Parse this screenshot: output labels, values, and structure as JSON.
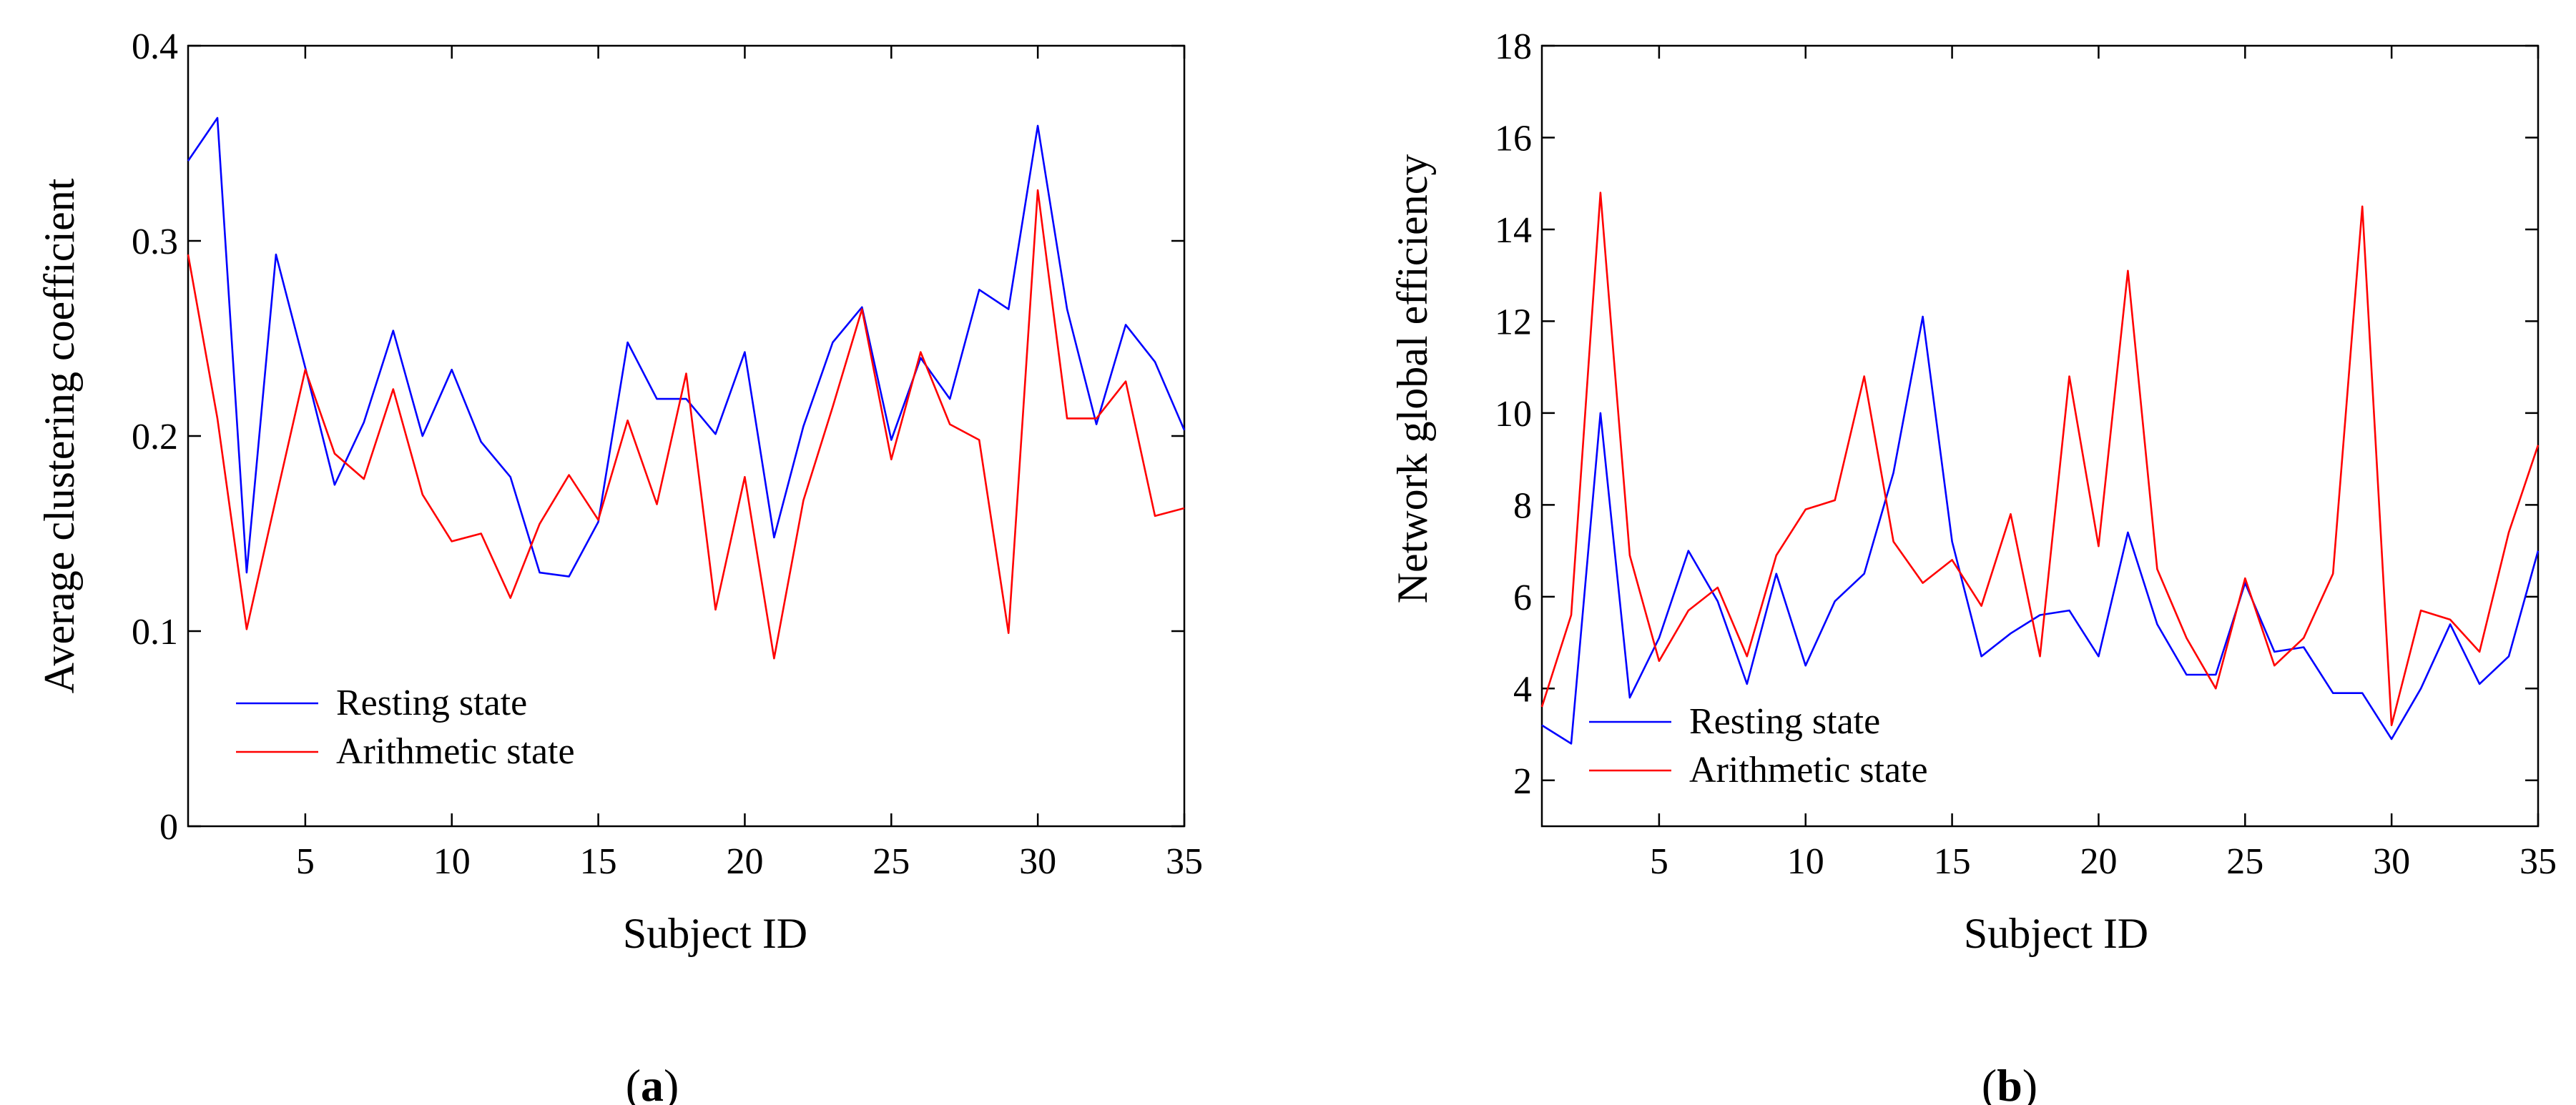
{
  "colors": {
    "resting": "#0000ff",
    "arithmetic": "#ff0000",
    "axis": "#000000"
  },
  "chart_data": [
    {
      "type": "line",
      "caption_letter": "a",
      "xlabel": "Subject ID",
      "ylabel": "Average clustering coefficient",
      "xlim": [
        1,
        35
      ],
      "ylim": [
        0,
        0.4
      ],
      "x_ticks": [
        5,
        10,
        15,
        20,
        25,
        30,
        35
      ],
      "y_ticks": [
        0,
        0.1,
        0.2,
        0.3,
        0.4
      ],
      "y_tick_labels": [
        "0",
        "0.1",
        "0.2",
        "0.3",
        "0.4"
      ],
      "x": [
        1,
        2,
        3,
        4,
        5,
        6,
        7,
        8,
        9,
        10,
        11,
        12,
        13,
        14,
        15,
        16,
        17,
        18,
        19,
        20,
        21,
        22,
        23,
        24,
        25,
        26,
        27,
        28,
        29,
        30,
        31,
        32,
        33,
        34,
        35
      ],
      "series": [
        {
          "name": "Resting state",
          "color_key": "resting",
          "values": [
            0.341,
            0.363,
            0.13,
            0.293,
            0.235,
            0.175,
            0.207,
            0.254,
            0.2,
            0.234,
            0.197,
            0.179,
            0.13,
            0.128,
            0.156,
            0.248,
            0.219,
            0.219,
            0.201,
            0.243,
            0.148,
            0.205,
            0.248,
            0.266,
            0.198,
            0.24,
            0.219,
            0.275,
            0.265,
            0.359,
            0.265,
            0.206,
            0.257,
            0.238,
            0.203
          ]
        },
        {
          "name": "Arithmetic state",
          "color_key": "arithmetic",
          "values": [
            0.293,
            0.209,
            0.101,
            0.168,
            0.234,
            0.191,
            0.178,
            0.224,
            0.17,
            0.146,
            0.15,
            0.117,
            0.155,
            0.18,
            0.157,
            0.208,
            0.165,
            0.232,
            0.111,
            0.179,
            0.086,
            0.167,
            0.215,
            0.265,
            0.188,
            0.243,
            0.206,
            0.198,
            0.099,
            0.326,
            0.209,
            0.209,
            0.228,
            0.159,
            0.163
          ]
        }
      ],
      "legend": [
        "Resting state",
        "Arithmetic state"
      ],
      "legend_position": "bottom-left"
    },
    {
      "type": "line",
      "caption_letter": "b",
      "xlabel": "Subject ID",
      "ylabel": "Network global efficiency",
      "xlim": [
        1,
        35
      ],
      "ylim": [
        1,
        18
      ],
      "x_ticks": [
        5,
        10,
        15,
        20,
        25,
        30,
        35
      ],
      "y_ticks": [
        2,
        4,
        6,
        8,
        10,
        12,
        14,
        16,
        18
      ],
      "y_tick_labels": [
        "2",
        "4",
        "6",
        "8",
        "10",
        "12",
        "14",
        "16",
        "18"
      ],
      "x": [
        1,
        2,
        3,
        4,
        5,
        6,
        7,
        8,
        9,
        10,
        11,
        12,
        13,
        14,
        15,
        16,
        17,
        18,
        19,
        20,
        21,
        22,
        23,
        24,
        25,
        26,
        27,
        28,
        29,
        30,
        31,
        32,
        33,
        34,
        35
      ],
      "series": [
        {
          "name": "Resting state",
          "color_key": "resting",
          "values": [
            3.2,
            2.8,
            10.0,
            3.8,
            5.1,
            7.0,
            5.9,
            4.1,
            6.5,
            4.5,
            5.9,
            6.5,
            8.7,
            12.1,
            7.2,
            4.7,
            5.2,
            5.6,
            5.7,
            4.7,
            7.4,
            5.4,
            4.3,
            4.3,
            6.3,
            4.8,
            4.9,
            3.9,
            3.9,
            2.9,
            4.0,
            5.4,
            4.1,
            4.7,
            7.0
          ]
        },
        {
          "name": "Arithmetic state",
          "color_key": "arithmetic",
          "values": [
            3.6,
            5.6,
            14.8,
            6.9,
            4.6,
            5.7,
            6.2,
            4.7,
            6.9,
            7.9,
            8.1,
            10.8,
            7.2,
            6.3,
            6.8,
            5.8,
            7.8,
            4.7,
            10.8,
            7.1,
            13.1,
            6.6,
            5.1,
            4.0,
            6.4,
            4.5,
            5.1,
            6.5,
            14.5,
            3.2,
            5.7,
            5.5,
            4.8,
            7.4,
            9.3
          ]
        }
      ],
      "legend": [
        "Resting state",
        "Arithmetic state"
      ],
      "legend_position": "bottom-left"
    }
  ]
}
